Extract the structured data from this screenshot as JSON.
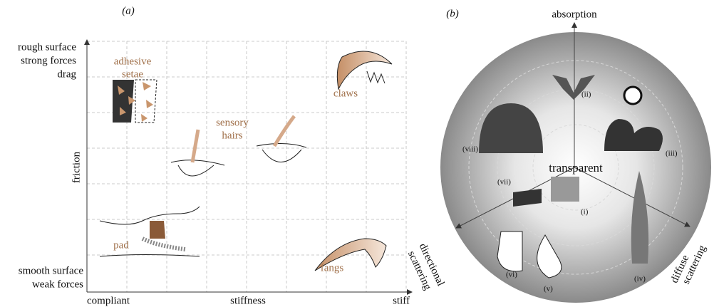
{
  "panel_a": {
    "label": "(a)",
    "y_axis": {
      "title": "friction",
      "top": [
        "rough surface",
        "strong forces",
        "drag"
      ],
      "bottom": [
        "smooth surface",
        "weak forces"
      ]
    },
    "x_axis": {
      "title": "stiffness",
      "left": "compliant",
      "right": "stiff"
    },
    "items": {
      "adhesive_setae": [
        "adhesive",
        "setae"
      ],
      "claws": "claws",
      "sensory_hairs": [
        "sensory",
        "hairs"
      ],
      "pad": "pad",
      "fangs": "fangs"
    }
  },
  "panel_b": {
    "label": "(b)",
    "axes": {
      "up": "absorption",
      "left": [
        "directional",
        "scattering"
      ],
      "right": [
        "diffuse",
        "scattering"
      ]
    },
    "center": "transparent",
    "numerals": [
      "(i)",
      "(ii)",
      "(iii)",
      "(iv)",
      "(v)",
      "(vi)",
      "(vii)",
      "(viii)"
    ]
  }
}
